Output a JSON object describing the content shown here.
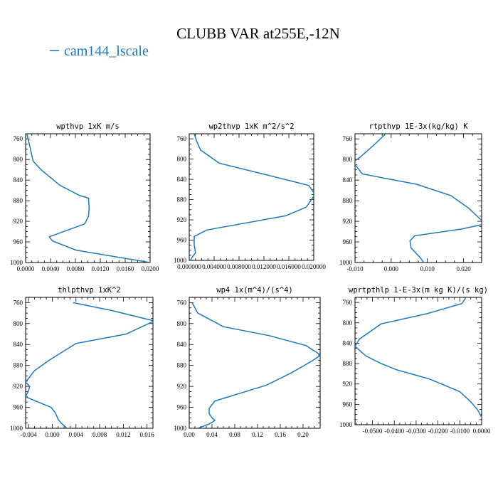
{
  "figure": {
    "title": "CLUBB VAR at255E,-12N",
    "legend": [
      {
        "label": "cam144_lscale",
        "color": "#1f77b4"
      }
    ],
    "line_color": "#1f77b4"
  },
  "chart_data": [
    {
      "type": "line",
      "title": "wpthvp  1xK m/s",
      "ylim": [
        1000,
        750
      ],
      "xlim": [
        0,
        0.02
      ],
      "xticks": [
        "0.0000",
        "0.0040",
        "0.0080",
        "0.0120",
        "0.0160",
        "0.0200"
      ],
      "xtick_values": [
        0,
        0.004,
        0.008,
        0.012,
        0.016,
        0.02
      ],
      "yticks": [
        "760",
        "800",
        "840",
        "880",
        "920",
        "960",
        "1000"
      ],
      "ytick_values": [
        760,
        800,
        840,
        880,
        920,
        960,
        1000
      ],
      "series": [
        {
          "x": [
            0.0002,
            0.0005,
            0.0012,
            0.0025,
            0.0055,
            0.0087,
            0.0101,
            0.0102,
            0.0101,
            0.0095,
            0.0038,
            0.0043,
            0.0081,
            0.02
          ],
          "y": [
            750,
            765,
            803,
            820,
            850,
            870,
            875,
            895,
            910,
            925,
            950,
            958,
            976,
            1000
          ]
        }
      ]
    },
    {
      "type": "line",
      "title": "wp2thvp  1xK m^2/s^2",
      "ylim": [
        1000,
        750
      ],
      "xlim": [
        0,
        0.02
      ],
      "xticks": [
        "0.000000",
        "0.004000",
        "0.008000",
        "0.012000",
        "0.016000",
        "0.020000"
      ],
      "xtick_values": [
        0,
        0.004,
        0.008,
        0.012,
        0.016,
        0.02
      ],
      "yticks": [
        "760",
        "800",
        "840",
        "880",
        "920",
        "960",
        "1000"
      ],
      "ytick_values": [
        760,
        800,
        840,
        880,
        920,
        960,
        1000
      ],
      "series": [
        {
          "x": [
            0.0008,
            0.0012,
            0.0018,
            0.0048,
            0.0127,
            0.0192,
            0.0202,
            0.0188,
            0.0155,
            0.0028,
            0.0008,
            0.0008,
            0.001,
            0.0005,
            0.0002
          ],
          "y": [
            750,
            765,
            782,
            808,
            832,
            852,
            870,
            895,
            912,
            940,
            953,
            970,
            985,
            993,
            1000
          ]
        }
      ]
    },
    {
      "type": "line",
      "title": "rtpthvp  1E-3x(kg/kg) K",
      "ylim": [
        1000,
        750
      ],
      "xlim": [
        -0.01,
        0.025
      ],
      "xticks": [
        "-0.010",
        "0.000",
        "0.010",
        "0.020"
      ],
      "xtick_values": [
        -0.01,
        0,
        0.01,
        0.02
      ],
      "yticks": [
        "760",
        "800",
        "840",
        "880",
        "920",
        "960",
        "1000"
      ],
      "ytick_values": [
        760,
        800,
        840,
        880,
        920,
        960,
        1000
      ],
      "series": [
        {
          "x": [
            -0.0015,
            -0.0045,
            -0.0085,
            -0.0105,
            -0.008,
            0.007,
            0.0165,
            0.0215,
            0.0245,
            0.026,
            0.0195,
            0.0065,
            0.0052,
            0.0055,
            0.008,
            0.009
          ],
          "y": [
            750,
            770,
            795,
            805,
            828,
            848,
            870,
            895,
            915,
            925,
            935,
            948,
            958,
            972,
            990,
            1000
          ]
        }
      ]
    },
    {
      "type": "line",
      "title": "thlpthvp  1xK^2",
      "ylim": [
        1000,
        750
      ],
      "xlim": [
        -0.0045,
        0.017
      ],
      "xticks": [
        "-0.004",
        "0.000",
        "0.004",
        "0.008",
        "0.012",
        "0.016"
      ],
      "xtick_values": [
        -0.004,
        0,
        0.004,
        0.008,
        0.012,
        0.016
      ],
      "yticks": [
        "760",
        "800",
        "840",
        "880",
        "920",
        "960",
        "1000"
      ],
      "ytick_values": [
        760,
        800,
        840,
        880,
        920,
        960,
        1000
      ],
      "series": [
        {
          "x": [
            0.0035,
            0.01,
            0.0172,
            0.0125,
            0.004,
            -0.0005,
            -0.003,
            -0.0045,
            -0.0038,
            -0.004,
            -0.0045,
            -0.0002,
            0.0005,
            0.001,
            0.0015,
            0.0025
          ],
          "y": [
            760,
            775,
            795,
            820,
            838,
            870,
            890,
            912,
            920,
            928,
            940,
            960,
            970,
            983,
            990,
            1000
          ]
        }
      ]
    },
    {
      "type": "line",
      "title": "wp4  1x(m^4)/(s^4)",
      "ylim": [
        1000,
        750
      ],
      "xlim": [
        0,
        0.23
      ],
      "xticks": [
        "0.00",
        "0.04",
        "0.08",
        "0.12",
        "0.16",
        "0.20"
      ],
      "xtick_values": [
        0,
        0.04,
        0.08,
        0.12,
        0.16,
        0.2
      ],
      "yticks": [
        "760",
        "800",
        "840",
        "880",
        "920",
        "960",
        "1000"
      ],
      "ytick_values": [
        760,
        800,
        840,
        880,
        920,
        960,
        1000
      ],
      "series": [
        {
          "x": [
            0.005,
            0.015,
            0.06,
            0.14,
            0.205,
            0.231,
            0.215,
            0.178,
            0.135,
            0.045,
            0.035,
            0.035,
            0.04,
            0.045,
            0.035,
            0.015
          ],
          "y": [
            760,
            780,
            806,
            823,
            842,
            860,
            872,
            895,
            918,
            948,
            962,
            972,
            980,
            985,
            992,
            1000
          ]
        }
      ]
    },
    {
      "type": "line",
      "title": "wprtpthlp  1-E-3x(m kg K)/(s kg)",
      "ylim": [
        1000,
        750
      ],
      "xlim": [
        -0.058,
        0
      ],
      "xticks": [
        "-0.0500",
        "-0.0400",
        "-0.0300",
        "-0.0200",
        "-0.0100",
        "0.0000"
      ],
      "xtick_values": [
        -0.05,
        -0.04,
        -0.03,
        -0.02,
        -0.01,
        0
      ],
      "yticks": [
        "760",
        "800",
        "840",
        "880",
        "920",
        "960",
        "1000"
      ],
      "ytick_values": [
        760,
        800,
        840,
        880,
        920,
        960,
        1000
      ],
      "series": [
        {
          "x": [
            -0.0075,
            -0.009,
            -0.025,
            -0.046,
            -0.056,
            -0.058,
            -0.053,
            -0.046,
            -0.039,
            -0.024,
            -0.01,
            -0.005,
            -0.002,
            0.0
          ],
          "y": [
            752,
            762,
            782,
            802,
            832,
            846,
            865,
            880,
            892,
            910,
            935,
            955,
            970,
            985
          ]
        }
      ]
    }
  ]
}
